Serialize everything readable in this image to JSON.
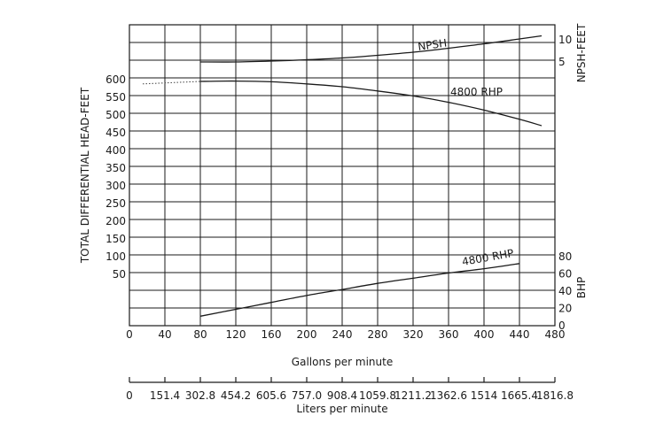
{
  "chart_data": {
    "type": "line",
    "xlabel": "Gallons per minute",
    "x2label": "Liters per minute",
    "ylabel_left": "TOTAL DIFFERENTIAL HEAD-FEET",
    "ylabel_right_top": "NPSH-FEET",
    "ylabel_right_bottom": "BHP",
    "xlim": [
      0,
      480
    ],
    "x_ticks": [
      "0",
      "40",
      "80",
      "120",
      "160",
      "200",
      "240",
      "280",
      "320",
      "360",
      "400",
      "440",
      "480"
    ],
    "liters_ticks": [
      "0",
      "151.4",
      "302.8",
      "454.2",
      "605.6",
      "757.0",
      "908.4",
      "1059.8",
      "1211.2",
      "1362.6",
      "1514",
      "1665.4",
      "1816.8"
    ],
    "head_ticks": [
      "50",
      "100",
      "150",
      "200",
      "250",
      "300",
      "350",
      "400",
      "450",
      "500",
      "550",
      "600"
    ],
    "npsh_ticks": [
      "5",
      "10"
    ],
    "bhp_ticks": [
      "0",
      "20",
      "40",
      "60",
      "80"
    ],
    "grid": true,
    "series": [
      {
        "name": "NPSH",
        "axis": "npsh",
        "x": [
          80,
          120,
          160,
          200,
          240,
          280,
          320,
          360,
          400,
          440,
          465
        ],
        "y": [
          5.0,
          5.0,
          5.2,
          5.5,
          5.9,
          6.5,
          7.2,
          8.1,
          9.1,
          10.2,
          10.9
        ]
      },
      {
        "name": "4800 RHP",
        "axis": "head",
        "x": [
          80,
          120,
          160,
          200,
          240,
          280,
          320,
          360,
          400,
          440,
          465
        ],
        "y": [
          595,
          596,
          594,
          588,
          580,
          568,
          554,
          536,
          514,
          488,
          470
        ]
      },
      {
        "name": "4800 RHP",
        "axis": "bhp",
        "x": [
          80,
          120,
          160,
          200,
          240,
          280,
          320,
          360,
          400,
          440
        ],
        "y": [
          11,
          19,
          27,
          35,
          42,
          49,
          55,
          61,
          66,
          72
        ]
      }
    ],
    "extrapolation": {
      "axis": "head",
      "x": [
        15,
        80
      ],
      "y": [
        588,
        595
      ]
    }
  }
}
